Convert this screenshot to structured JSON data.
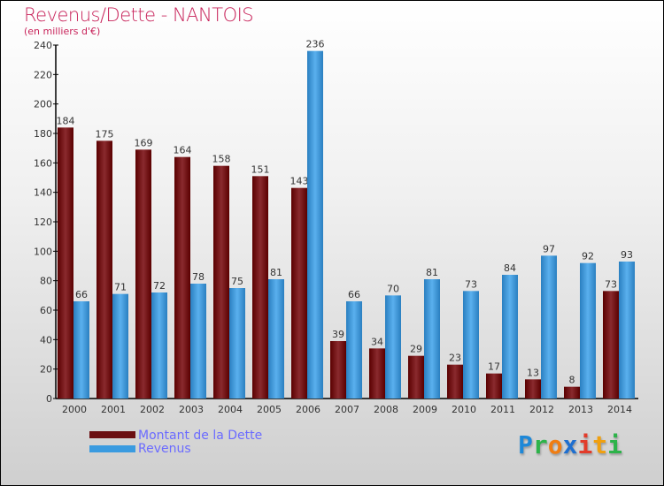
{
  "header": {
    "title": "Revenus/Dette - NANTOIS",
    "subtitle": "(en milliers d'€)"
  },
  "logo": {
    "text": "Proxiti",
    "letters": [
      {
        "c": "P",
        "color": "#1e88d8"
      },
      {
        "c": "r",
        "color": "#2db34a"
      },
      {
        "c": "o",
        "color": "#f07d12"
      },
      {
        "c": "x",
        "color": "#1e6fd0"
      },
      {
        "c": "i",
        "color": "#e23b2a"
      },
      {
        "c": "t",
        "color": "#f0a010"
      },
      {
        "c": "i",
        "color": "#2db34a"
      }
    ]
  },
  "chart_data": {
    "type": "bar",
    "title": "Revenus/Dette - NANTOIS",
    "ylabel": "(en milliers d'€)",
    "ylim": [
      0,
      240
    ],
    "yticks": [
      0,
      20,
      40,
      60,
      80,
      100,
      120,
      140,
      160,
      180,
      200,
      220,
      240
    ],
    "categories": [
      "2000",
      "2001",
      "2002",
      "2003",
      "2004",
      "2005",
      "2006",
      "2007",
      "2008",
      "2009",
      "2010",
      "2011",
      "2012",
      "2013",
      "2014"
    ],
    "series": [
      {
        "name": "Montant de la Dette",
        "color": "#6b0f12",
        "values": [
          184,
          175,
          169,
          164,
          158,
          151,
          143,
          39,
          34,
          29,
          23,
          17,
          13,
          8,
          73
        ]
      },
      {
        "name": "Revenus",
        "color": "#3a9be0",
        "values": [
          66,
          71,
          72,
          78,
          75,
          81,
          236,
          66,
          70,
          81,
          73,
          84,
          97,
          92,
          93
        ]
      }
    ],
    "legend": "bottom-left"
  }
}
